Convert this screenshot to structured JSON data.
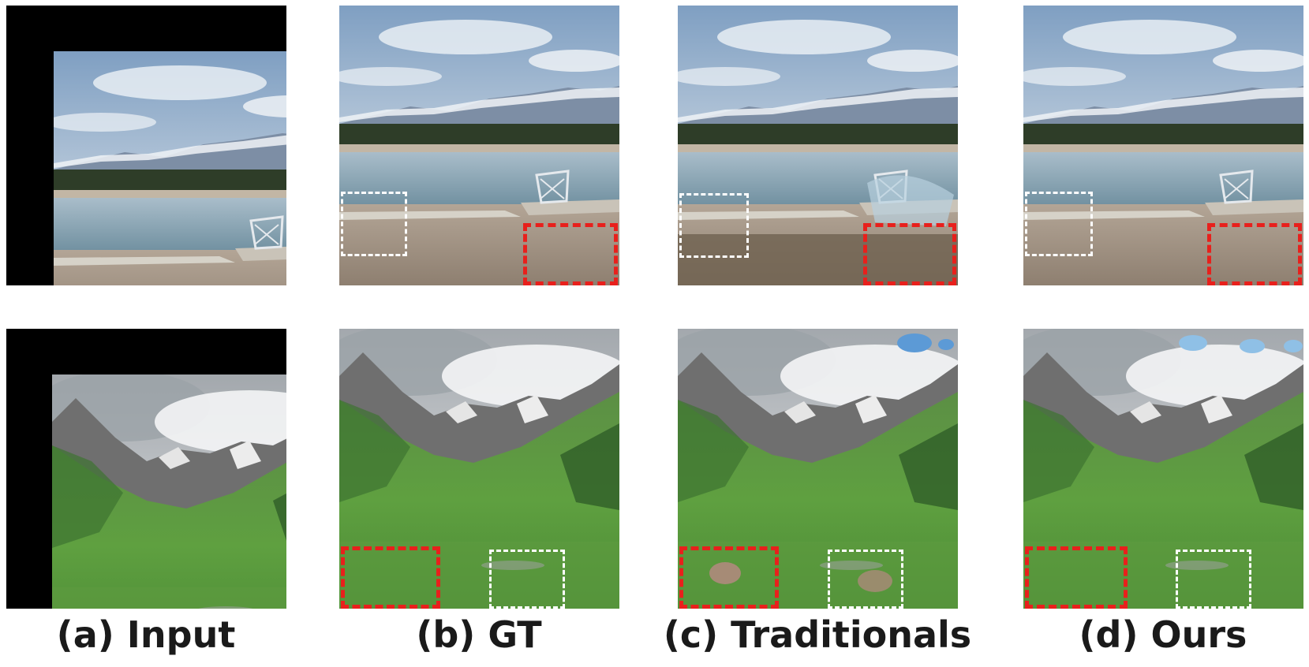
{
  "captions": {
    "input": "(a) Input",
    "gt": "(b) GT",
    "traditional": "(c) Traditionals",
    "ours": "(d) Ours"
  },
  "colors": {
    "mask": "#000000",
    "box_red": "#e8201c",
    "box_white": "#ffffff",
    "lake_sky": "#b9c9d8",
    "lake_water": "#8aa4b4",
    "beach_sand": "#a8998a",
    "valley_grass": "#4f8f3c",
    "mountain_rock": "#7b7b7b"
  },
  "rows": [
    {
      "scene": "lake-with-mountains-and-dock"
    },
    {
      "scene": "green-mountain-valley"
    }
  ]
}
